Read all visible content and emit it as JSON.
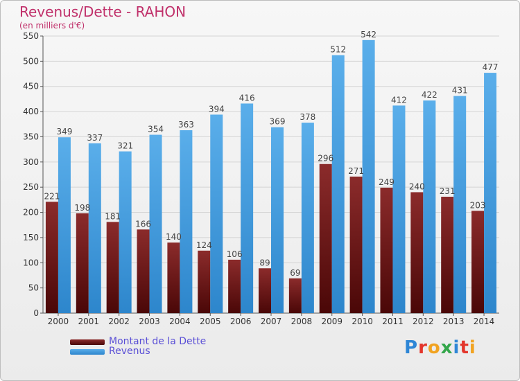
{
  "chart_data": {
    "type": "bar",
    "title": "Revenus/Dette - RAHON",
    "subtitle": "(en milliers d'€)",
    "categories": [
      "2000",
      "2001",
      "2002",
      "2003",
      "2004",
      "2005",
      "2006",
      "2007",
      "2008",
      "2009",
      "2010",
      "2011",
      "2012",
      "2013",
      "2014"
    ],
    "series": [
      {
        "name": "Montant de la Dette",
        "color": "#7a1f1f",
        "values": [
          221,
          198,
          181,
          166,
          140,
          124,
          106,
          89,
          69,
          296,
          271,
          249,
          240,
          231,
          203
        ]
      },
      {
        "name": "Revenus",
        "color": "#3d9be2",
        "values": [
          349,
          337,
          321,
          354,
          363,
          394,
          416,
          369,
          378,
          512,
          542,
          412,
          422,
          431,
          477
        ]
      }
    ],
    "ylim": [
      0,
      550
    ],
    "yticks": [
      0,
      50,
      100,
      150,
      200,
      250,
      300,
      350,
      400,
      450,
      500,
      550
    ],
    "grid": true,
    "legend_position": "bottom-left"
  },
  "logo": {
    "text": "Proxiti"
  }
}
